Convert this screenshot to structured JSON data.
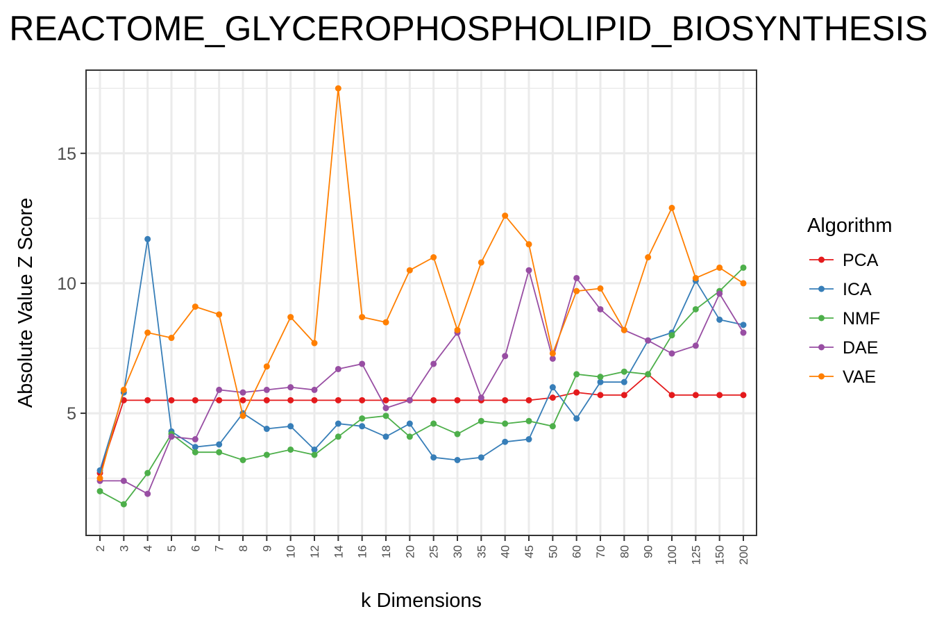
{
  "chart_data": {
    "type": "line",
    "title": "REACTOME_GLYCEROPHOSPHOLIPID_BIOSYNTHESIS",
    "xlabel": "k Dimensions",
    "ylabel": "Absolute Value Z Score",
    "x_scale": "categorical",
    "categories": [
      "2",
      "3",
      "4",
      "5",
      "6",
      "7",
      "8",
      "9",
      "10",
      "12",
      "14",
      "16",
      "18",
      "20",
      "25",
      "30",
      "35",
      "40",
      "45",
      "50",
      "60",
      "70",
      "80",
      "90",
      "100",
      "125",
      "150",
      "200"
    ],
    "ylim": [
      0.3,
      18.2
    ],
    "yticks": [
      5,
      10,
      15
    ],
    "grid": true,
    "legend_title": "Algorithm",
    "legend_position": "right",
    "series": [
      {
        "name": "PCA",
        "color": "#e41a1c",
        "values": [
          2.7,
          5.5,
          5.5,
          5.5,
          5.5,
          5.5,
          5.5,
          5.5,
          5.5,
          5.5,
          5.5,
          5.5,
          5.5,
          5.5,
          5.5,
          5.5,
          5.5,
          5.5,
          5.5,
          5.6,
          5.8,
          5.7,
          5.7,
          6.5,
          5.7,
          5.7,
          5.7,
          5.7
        ]
      },
      {
        "name": "ICA",
        "color": "#377eb8",
        "values": [
          2.8,
          5.8,
          11.7,
          4.3,
          3.7,
          3.8,
          5.0,
          4.4,
          4.5,
          3.6,
          4.6,
          4.5,
          4.1,
          4.6,
          3.3,
          3.2,
          3.3,
          3.9,
          4.0,
          6.0,
          4.8,
          6.2,
          6.2,
          7.8,
          8.1,
          10.1,
          8.6,
          8.4
        ]
      },
      {
        "name": "NMF",
        "color": "#4daf4a",
        "values": [
          2.0,
          1.5,
          2.7,
          4.2,
          3.5,
          3.5,
          3.2,
          3.4,
          3.6,
          3.4,
          4.1,
          4.8,
          4.9,
          4.1,
          4.6,
          4.2,
          4.7,
          4.6,
          4.7,
          4.5,
          6.5,
          6.4,
          6.6,
          6.5,
          8.0,
          9.0,
          9.7,
          10.6
        ]
      },
      {
        "name": "DAE",
        "color": "#984ea3",
        "values": [
          2.4,
          2.4,
          1.9,
          4.1,
          4.0,
          5.9,
          5.8,
          5.9,
          6.0,
          5.9,
          6.7,
          6.9,
          5.2,
          5.5,
          6.9,
          8.1,
          5.6,
          7.2,
          10.5,
          7.1,
          10.2,
          9.0,
          8.2,
          7.8,
          7.3,
          7.6,
          9.6,
          8.1
        ]
      },
      {
        "name": "VAE",
        "color": "#ff7f00",
        "values": [
          2.5,
          5.9,
          8.1,
          7.9,
          9.1,
          8.8,
          4.9,
          6.8,
          8.7,
          7.7,
          17.5,
          8.7,
          8.5,
          10.5,
          11.0,
          8.2,
          10.8,
          12.6,
          11.5,
          7.3,
          9.7,
          9.8,
          8.2,
          11.0,
          12.9,
          10.2,
          10.6,
          10.0
        ]
      }
    ]
  }
}
